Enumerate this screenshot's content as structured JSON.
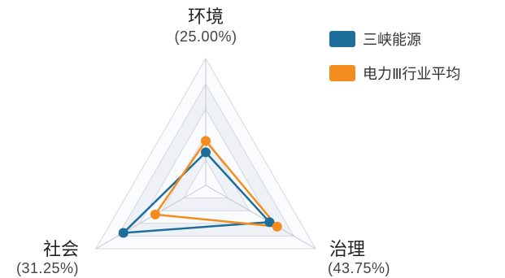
{
  "chart_data": {
    "type": "radar",
    "axes": [
      {
        "name": "环境",
        "weight_label": "(25.00%)"
      },
      {
        "name": "治理",
        "weight_label": "(43.75%)"
      },
      {
        "name": "社会",
        "weight_label": "(31.25%)"
      }
    ],
    "series": [
      {
        "name": "三峡能源",
        "color": "#1d6e9a",
        "values": [
          0.26,
          0.58,
          0.75
        ]
      },
      {
        "name": "电力Ⅲ行业平均",
        "color": "#f58d1e",
        "values": [
          0.35,
          0.65,
          0.46
        ]
      }
    ],
    "range": [
      0,
      1
    ],
    "grid": true,
    "legend_position": "top-right"
  }
}
